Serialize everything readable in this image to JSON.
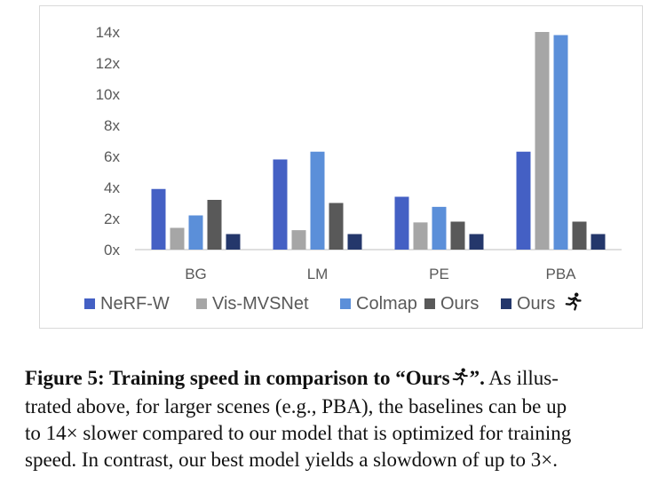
{
  "chart_data": {
    "type": "bar",
    "categories": [
      "BG",
      "LM",
      "PE",
      "PBA"
    ],
    "series": [
      {
        "name": "NeRF-W",
        "color": "#4460c4",
        "values": [
          3.9,
          5.8,
          3.4,
          6.3
        ]
      },
      {
        "name": "Vis-MVSNet",
        "color": "#a6a6a6",
        "values": [
          1.4,
          1.25,
          1.75,
          14.0
        ]
      },
      {
        "name": "Colmap",
        "color": "#5b8fd9",
        "values": [
          2.2,
          6.3,
          2.75,
          13.8
        ]
      },
      {
        "name": "Ours",
        "color": "#595959",
        "values": [
          3.2,
          3.0,
          1.8,
          1.8
        ]
      },
      {
        "name": "Ours",
        "color": "#24376b",
        "icon": "runner-icon",
        "values": [
          1.0,
          1.0,
          1.0,
          1.0
        ]
      }
    ],
    "ylim": [
      0,
      14
    ],
    "yticks": [
      0,
      2,
      4,
      6,
      8,
      10,
      12,
      14
    ],
    "ytick_labels": [
      "0x",
      "2x",
      "4x",
      "6x",
      "8x",
      "10x",
      "12x",
      "14x"
    ],
    "legend_position": "bottom",
    "grid": false
  },
  "caption": {
    "figure_label": "Figure 5: Training speed in comparison to “Ours",
    "figure_label_end": "”.",
    "body_first": " As illus-",
    "line2": "trated above, for larger scenes (e.g., PBA), the baselines can be up",
    "line3": "to 14× slower compared to our model that is optimized for training",
    "line4": "speed. In contrast, our best model yields a slowdown of up to 3×."
  }
}
